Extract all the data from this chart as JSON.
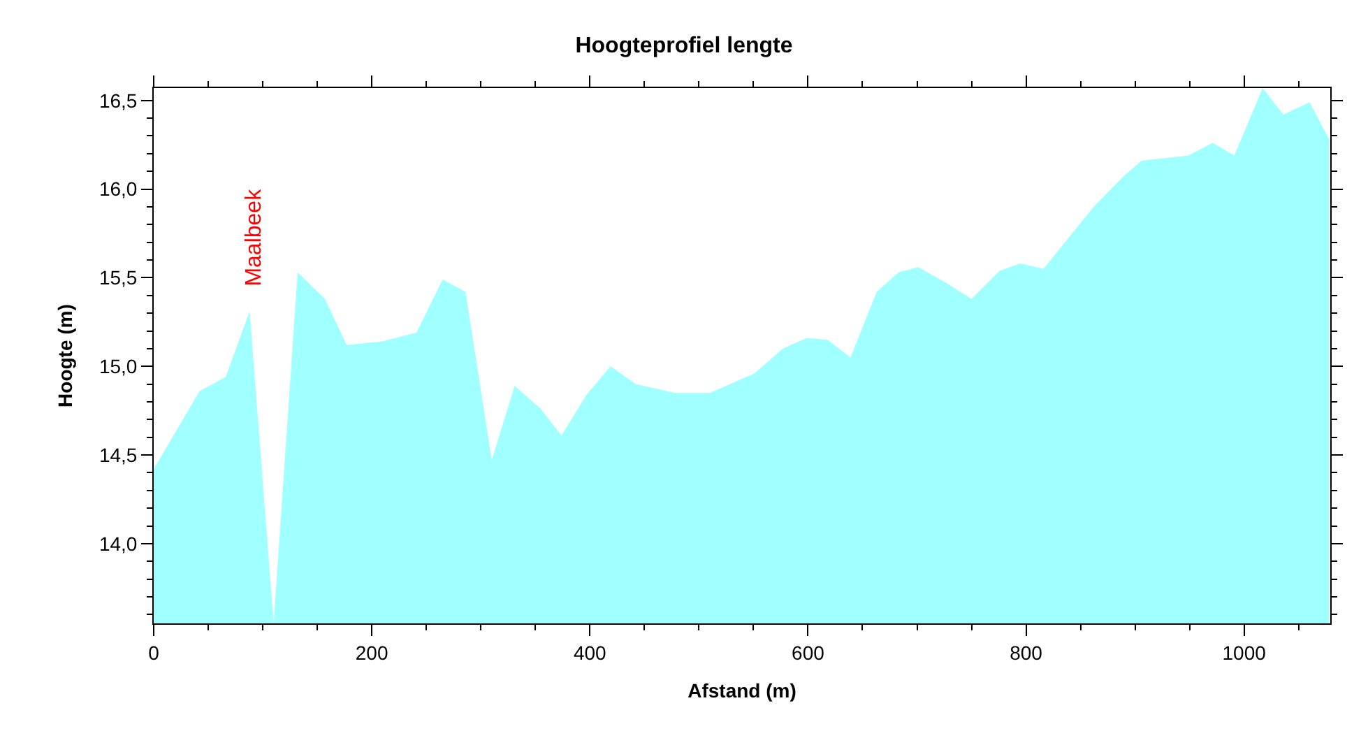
{
  "chart_data": {
    "type": "area",
    "title": "Hoogteprofiel lengte",
    "xlabel": "Afstand (m)",
    "ylabel": "Hoogte (m)",
    "x": [
      0,
      42,
      66,
      88,
      110,
      132,
      157,
      177,
      209,
      241,
      265,
      286,
      310,
      331,
      355,
      374,
      397,
      419,
      442,
      478,
      510,
      551,
      577,
      599,
      618,
      639,
      663,
      683,
      701,
      727,
      750,
      776,
      795,
      816,
      862,
      889,
      906,
      949,
      971,
      991,
      1017,
      1036,
      1060,
      1078
    ],
    "series": [
      {
        "color": "#a0ffff",
        "values": [
          14.42,
          14.86,
          14.94,
          15.31,
          13.55,
          15.53,
          15.38,
          15.12,
          15.14,
          15.19,
          15.49,
          15.42,
          14.47,
          14.89,
          14.76,
          14.61,
          14.84,
          15.0,
          14.9,
          14.85,
          14.85,
          14.96,
          15.1,
          15.16,
          15.15,
          15.05,
          15.42,
          15.53,
          15.56,
          15.47,
          15.38,
          15.54,
          15.58,
          15.55,
          15.9,
          16.07,
          16.16,
          16.19,
          16.26,
          16.19,
          16.57,
          16.42,
          16.49,
          16.28
        ]
      }
    ],
    "xlim": [
      0,
      1079
    ],
    "xticks": [
      0,
      200,
      400,
      600,
      800,
      1000
    ],
    "ylim": [
      13.55,
      16.57
    ],
    "yticks": [
      {
        "value": 14.0,
        "label": "14,0"
      },
      {
        "value": 14.5,
        "label": "14,5"
      },
      {
        "value": 15.0,
        "label": "15,0"
      },
      {
        "value": 15.5,
        "label": "15,5"
      },
      {
        "value": 16.0,
        "label": "16,0"
      },
      {
        "value": 16.5,
        "label": "16,5"
      }
    ],
    "annotations": [
      "Maalbeek"
    ],
    "legend": false,
    "marker": "none"
  }
}
